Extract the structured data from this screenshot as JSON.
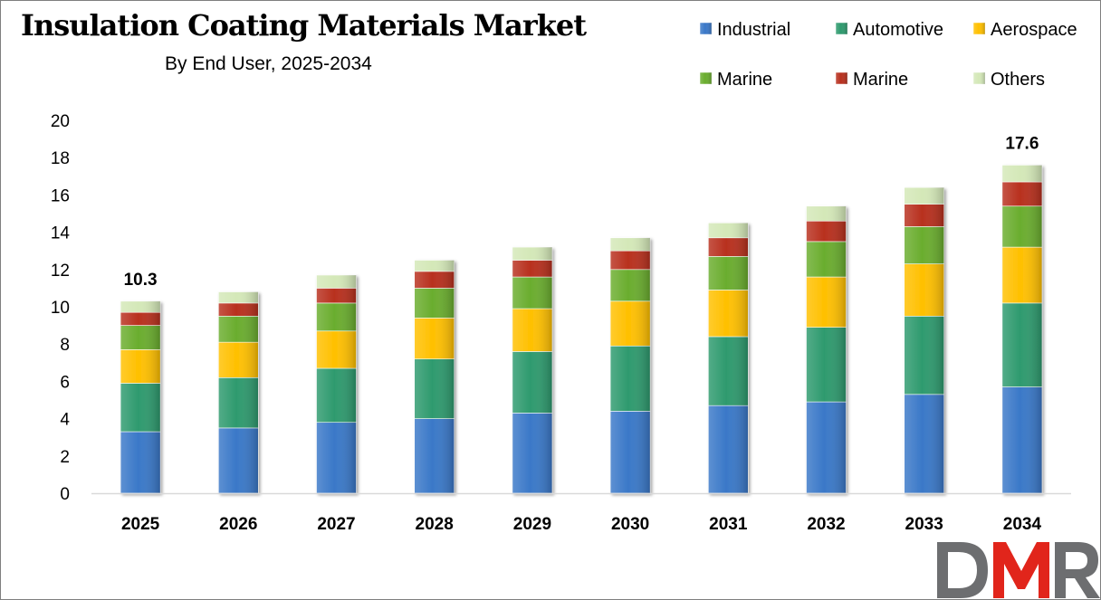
{
  "chart_data": {
    "type": "bar",
    "stacked": true,
    "title": "Insulation Coating Materials Market",
    "subtitle": "By End User, 2025-2034",
    "xlabel": "",
    "ylabel": "",
    "ylim": [
      0,
      20
    ],
    "yticks": [
      0,
      2,
      4,
      6,
      8,
      10,
      12,
      14,
      16,
      18,
      20
    ],
    "grid": false,
    "legend": "top-right",
    "categories": [
      "2025",
      "2026",
      "2027",
      "2028",
      "2029",
      "2030",
      "2031",
      "2032",
      "2033",
      "2034"
    ],
    "series": [
      {
        "name": "Industrial",
        "color": "#3a78c8",
        "values": [
          3.3,
          3.5,
          3.8,
          4.0,
          4.3,
          4.4,
          4.7,
          4.9,
          5.3,
          5.7
        ]
      },
      {
        "name": "Automotive",
        "color": "#2e9a6e",
        "values": [
          2.6,
          2.7,
          2.9,
          3.2,
          3.3,
          3.5,
          3.7,
          4.0,
          4.2,
          4.5
        ]
      },
      {
        "name": "Aerospace",
        "color": "#ffc000",
        "values": [
          1.8,
          1.9,
          2.0,
          2.2,
          2.3,
          2.4,
          2.5,
          2.7,
          2.8,
          3.0
        ]
      },
      {
        "name": "Marine",
        "color": "#6aad2e",
        "values": [
          1.3,
          1.4,
          1.5,
          1.6,
          1.7,
          1.7,
          1.8,
          1.9,
          2.0,
          2.2
        ]
      },
      {
        "name": "Marine",
        "color": "#b8301e",
        "values": [
          0.7,
          0.7,
          0.8,
          0.9,
          0.9,
          1.0,
          1.0,
          1.1,
          1.2,
          1.3
        ]
      },
      {
        "name": "Others",
        "color": "#d4e8b8",
        "values": [
          0.6,
          0.6,
          0.7,
          0.6,
          0.7,
          0.7,
          0.8,
          0.8,
          0.9,
          0.9
        ]
      }
    ],
    "data_labels": [
      {
        "category": "2025",
        "text": "10.3"
      },
      {
        "category": "2034",
        "text": "17.6"
      }
    ]
  },
  "logo": {
    "text": "DMR",
    "colors": [
      "#6d6e70",
      "#e1251b",
      "#6d6e70"
    ]
  }
}
